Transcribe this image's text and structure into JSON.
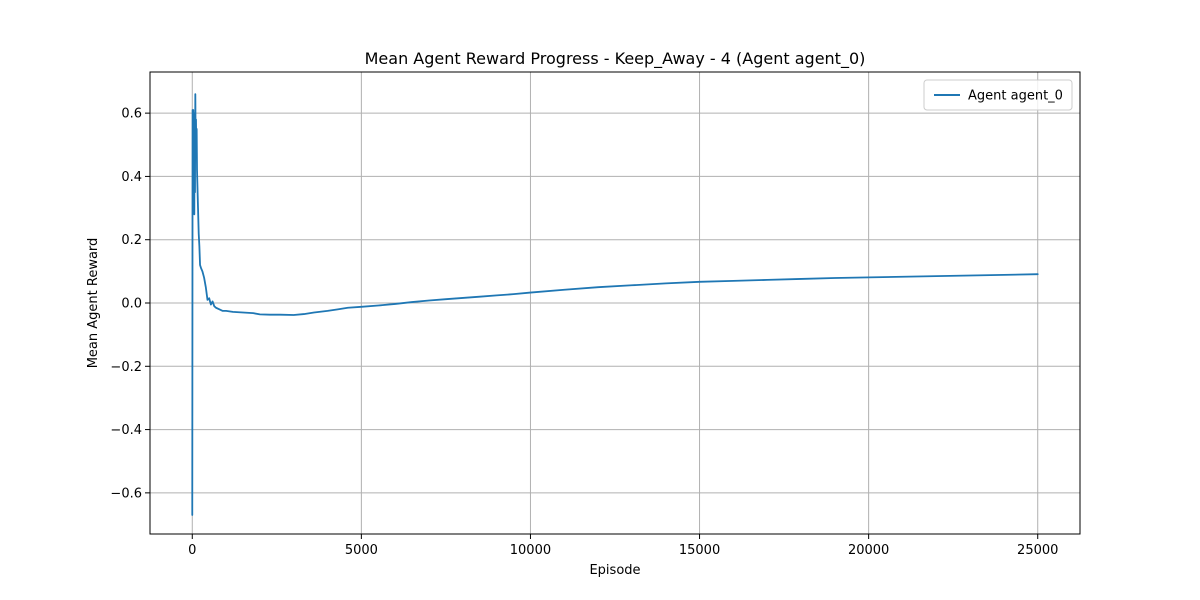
{
  "chart_data": {
    "type": "line",
    "title": "Mean Agent Reward Progress - Keep_Away - 4 (Agent agent_0)",
    "xlabel": "Episode",
    "ylabel": "Mean Agent Reward",
    "xlim": [
      -1250,
      26250
    ],
    "ylim": [
      -0.73,
      0.73
    ],
    "xticks": [
      0,
      5000,
      10000,
      15000,
      20000,
      25000
    ],
    "xtick_labels": [
      "0",
      "5000",
      "10000",
      "15000",
      "20000",
      "25000"
    ],
    "yticks": [
      -0.6,
      -0.4,
      -0.2,
      0.0,
      0.2,
      0.4,
      0.6
    ],
    "ytick_labels": [
      "−0.6",
      "−0.4",
      "−0.2",
      "0.0",
      "0.2",
      "0.4",
      "0.6"
    ],
    "grid": true,
    "legend_position": "top-right",
    "series": [
      {
        "name": "Agent agent_0",
        "color": "#1f77b4",
        "x": [
          0,
          5,
          10,
          20,
          30,
          40,
          50,
          60,
          70,
          80,
          90,
          100,
          110,
          120,
          130,
          140,
          150,
          170,
          190,
          210,
          230,
          260,
          300,
          350,
          400,
          450,
          500,
          550,
          600,
          650,
          700,
          800,
          900,
          1000,
          1200,
          1500,
          1800,
          2000,
          2300,
          2600,
          3000,
          3300,
          3600,
          4000,
          4300,
          4600,
          5000,
          5500,
          6000,
          6500,
          7000,
          7500,
          8000,
          8500,
          9000,
          9500,
          10000,
          11000,
          12000,
          13000,
          14000,
          15000,
          16000,
          17000,
          18000,
          19000,
          20000,
          21000,
          22000,
          23000,
          24000,
          25000
        ],
        "values": [
          -0.67,
          0.0,
          0.61,
          0.45,
          0.61,
          0.3,
          0.55,
          0.28,
          0.6,
          0.35,
          0.66,
          0.5,
          0.58,
          0.48,
          0.55,
          0.42,
          0.38,
          0.3,
          0.22,
          0.18,
          0.12,
          0.11,
          0.1,
          0.08,
          0.05,
          0.01,
          0.015,
          -0.005,
          0.005,
          -0.01,
          -0.015,
          -0.02,
          -0.025,
          -0.025,
          -0.028,
          -0.03,
          -0.032,
          -0.036,
          -0.037,
          -0.037,
          -0.038,
          -0.035,
          -0.03,
          -0.025,
          -0.02,
          -0.015,
          -0.012,
          -0.008,
          -0.003,
          0.003,
          0.008,
          0.012,
          0.016,
          0.02,
          0.024,
          0.028,
          0.033,
          0.042,
          0.05,
          0.056,
          0.062,
          0.067,
          0.07,
          0.073,
          0.076,
          0.079,
          0.081,
          0.083,
          0.085,
          0.087,
          0.089,
          0.091
        ]
      }
    ]
  }
}
